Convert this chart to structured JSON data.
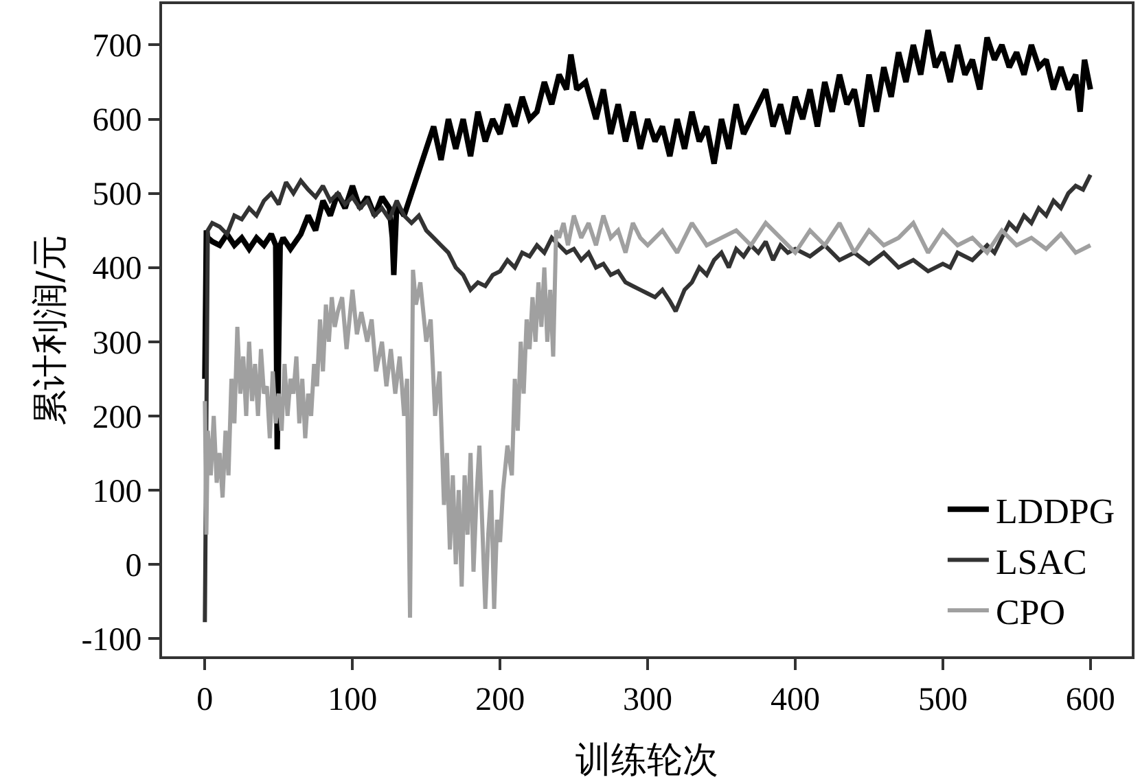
{
  "chart_data": {
    "type": "line",
    "xlabel": "训练轮次",
    "ylabel": "累计利润/元",
    "xlim": [
      -29,
      628
    ],
    "ylim": [
      -124,
      755
    ],
    "xticks": [
      0,
      100,
      200,
      300,
      400,
      500,
      600
    ],
    "yticks": [
      -100,
      0,
      100,
      200,
      300,
      400,
      500,
      600,
      700
    ],
    "grid": false,
    "legend": "bottom right",
    "line_style": "solid",
    "marker": "none",
    "series": [
      {
        "name": "LDDPG",
        "color": "#000000",
        "x": [
          0,
          1,
          2,
          5,
          10,
          15,
          20,
          25,
          30,
          35,
          40,
          45,
          48,
          49,
          51,
          53,
          58,
          65,
          70,
          75,
          80,
          85,
          90,
          95,
          100,
          105,
          110,
          115,
          120,
          125,
          127,
          128,
          130,
          135,
          140,
          145,
          150,
          155,
          160,
          165,
          170,
          175,
          180,
          185,
          190,
          195,
          200,
          205,
          210,
          215,
          220,
          225,
          230,
          235,
          240,
          245,
          248,
          252,
          258,
          265,
          270,
          275,
          280,
          285,
          290,
          295,
          300,
          305,
          310,
          315,
          320,
          325,
          330,
          335,
          340,
          345,
          350,
          355,
          360,
          365,
          370,
          380,
          385,
          390,
          395,
          400,
          405,
          410,
          415,
          420,
          425,
          430,
          435,
          440,
          445,
          450,
          455,
          460,
          465,
          470,
          475,
          480,
          485,
          490,
          495,
          500,
          505,
          510,
          515,
          520,
          525,
          530,
          535,
          540,
          545,
          550,
          555,
          560,
          565,
          570,
          575,
          580,
          585,
          590,
          593,
          596,
          600
        ],
        "values": [
          250,
          450,
          440,
          435,
          430,
          445,
          430,
          440,
          425,
          440,
          430,
          445,
          430,
          155,
          430,
          440,
          425,
          445,
          470,
          450,
          490,
          470,
          500,
          480,
          510,
          480,
          495,
          470,
          495,
          480,
          440,
          390,
          485,
          470,
          500,
          530,
          560,
          590,
          545,
          600,
          560,
          600,
          550,
          610,
          570,
          600,
          580,
          620,
          590,
          630,
          600,
          610,
          650,
          620,
          660,
          640,
          687,
          640,
          650,
          600,
          640,
          580,
          620,
          570,
          610,
          560,
          600,
          570,
          590,
          550,
          600,
          560,
          610,
          570,
          590,
          540,
          600,
          560,
          620,
          580,
          600,
          640,
          590,
          620,
          580,
          630,
          600,
          640,
          590,
          650,
          610,
          660,
          620,
          640,
          590,
          660,
          610,
          670,
          630,
          690,
          650,
          700,
          660,
          720,
          670,
          690,
          650,
          700,
          660,
          680,
          640,
          710,
          680,
          700,
          670,
          690,
          660,
          700,
          670,
          680,
          640,
          670,
          640,
          660,
          610,
          680,
          640
        ]
      },
      {
        "name": "LSAC",
        "color": "#333333",
        "x": [
          0,
          2,
          5,
          10,
          15,
          20,
          25,
          30,
          35,
          40,
          45,
          50,
          55,
          60,
          65,
          70,
          75,
          80,
          85,
          90,
          95,
          100,
          105,
          110,
          115,
          120,
          125,
          130,
          135,
          140,
          145,
          150,
          155,
          160,
          165,
          170,
          175,
          180,
          185,
          190,
          195,
          200,
          205,
          210,
          215,
          220,
          225,
          230,
          235,
          240,
          245,
          250,
          255,
          260,
          265,
          270,
          275,
          280,
          285,
          290,
          295,
          300,
          305,
          310,
          315,
          319,
          325,
          330,
          335,
          340,
          345,
          350,
          355,
          360,
          365,
          370,
          375,
          380,
          385,
          390,
          395,
          400,
          410,
          420,
          430,
          440,
          450,
          460,
          470,
          480,
          490,
          500,
          505,
          510,
          520,
          530,
          535,
          540,
          545,
          550,
          555,
          560,
          565,
          570,
          575,
          580,
          585,
          590,
          595,
          600
        ],
        "values": [
          -78,
          450,
          460,
          455,
          445,
          470,
          465,
          480,
          470,
          490,
          500,
          485,
          515,
          500,
          517,
          505,
          495,
          510,
          490,
          500,
          485,
          495,
          480,
          490,
          470,
          480,
          465,
          490,
          470,
          460,
          470,
          450,
          440,
          430,
          420,
          400,
          390,
          370,
          380,
          375,
          390,
          395,
          410,
          400,
          420,
          415,
          430,
          420,
          440,
          430,
          420,
          425,
          410,
          420,
          400,
          405,
          390,
          395,
          380,
          375,
          370,
          365,
          360,
          370,
          355,
          341,
          370,
          380,
          400,
          390,
          410,
          420,
          400,
          425,
          415,
          430,
          420,
          435,
          410,
          430,
          420,
          425,
          415,
          430,
          410,
          420,
          405,
          420,
          400,
          410,
          395,
          405,
          400,
          420,
          410,
          430,
          420,
          440,
          460,
          450,
          470,
          460,
          480,
          470,
          490,
          480,
          500,
          510,
          505,
          525
        ]
      },
      {
        "name": "CPO",
        "color": "#a0a0a0",
        "x": [
          0,
          1,
          2,
          4,
          6,
          8,
          10,
          12,
          14,
          16,
          18,
          20,
          22,
          24,
          26,
          28,
          30,
          32,
          34,
          36,
          38,
          40,
          42,
          44,
          46,
          48,
          50,
          52,
          54,
          56,
          58,
          60,
          62,
          64,
          66,
          68,
          70,
          72,
          74,
          76,
          78,
          80,
          82,
          84,
          86,
          88,
          90,
          93,
          96,
          100,
          103,
          106,
          110,
          113,
          116,
          120,
          123,
          126,
          129,
          132,
          135,
          137,
          139,
          141,
          143,
          146,
          150,
          153,
          156,
          159,
          162,
          164,
          166,
          168,
          170,
          172,
          174,
          176,
          178,
          180,
          182,
          184,
          186,
          188,
          190,
          192,
          194,
          196,
          198,
          200,
          202,
          205,
          208,
          210,
          212,
          214,
          216,
          218,
          220,
          222,
          224,
          226,
          228,
          230,
          232,
          234,
          236,
          238,
          240,
          243,
          246,
          250,
          255,
          260,
          265,
          270,
          275,
          280,
          285,
          290,
          295,
          300,
          310,
          320,
          330,
          340,
          350,
          360,
          370,
          380,
          390,
          400,
          410,
          420,
          430,
          440,
          450,
          460,
          470,
          480,
          490,
          500,
          510,
          520,
          530,
          540,
          550,
          560,
          570,
          580,
          590,
          600
        ],
        "values": [
          220,
          40,
          180,
          120,
          200,
          110,
          150,
          90,
          180,
          120,
          250,
          190,
          320,
          230,
          280,
          200,
          300,
          220,
          270,
          200,
          290,
          230,
          240,
          170,
          260,
          190,
          230,
          180,
          270,
          200,
          250,
          230,
          280,
          190,
          250,
          170,
          230,
          200,
          270,
          240,
          330,
          260,
          350,
          300,
          360,
          320,
          340,
          360,
          290,
          370,
          310,
          340,
          300,
          330,
          260,
          300,
          240,
          290,
          230,
          280,
          200,
          250,
          -72,
          397,
          350,
          380,
          300,
          330,
          200,
          260,
          80,
          150,
          20,
          120,
          0,
          100,
          -30,
          120,
          40,
          150,
          -10,
          90,
          160,
          50,
          -60,
          40,
          100,
          -60,
          60,
          30,
          100,
          160,
          120,
          250,
          180,
          300,
          230,
          330,
          290,
          360,
          300,
          380,
          320,
          400,
          300,
          370,
          280,
          450,
          440,
          460,
          430,
          470,
          440,
          460,
          430,
          470,
          440,
          450,
          420,
          460,
          440,
          430,
          450,
          420,
          460,
          430,
          440,
          450,
          430,
          460,
          440,
          420,
          450,
          430,
          460,
          420,
          450,
          430,
          440,
          460,
          420,
          450,
          430,
          440,
          420,
          450,
          430,
          440,
          425,
          445,
          420,
          430
        ]
      }
    ]
  }
}
